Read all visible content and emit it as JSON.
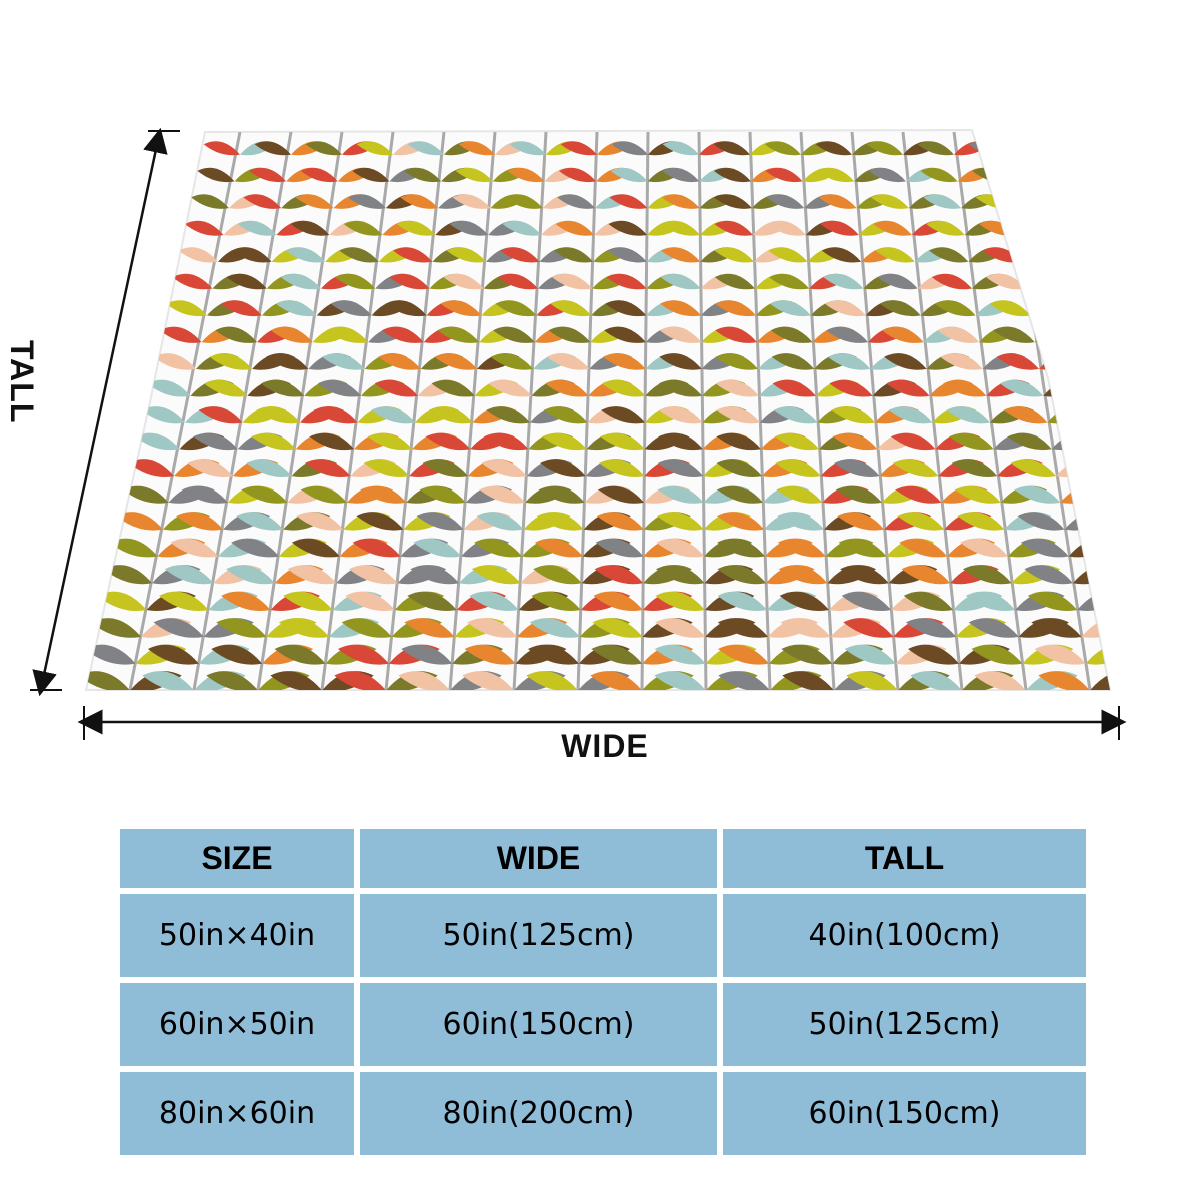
{
  "dimensions": {
    "tall_label": "TALL",
    "wide_label": "WIDE"
  },
  "palette": {
    "stem": "#a9a9a9",
    "leaves": [
      "#c6c41e",
      "#6b4a24",
      "#e8862f",
      "#7b7a2b",
      "#d94836",
      "#9fc7c3",
      "#808285",
      "#f2c2a4",
      "#92961f"
    ],
    "table_fill": "#8fbdd8"
  },
  "size_table": {
    "headers": [
      "SIZE",
      "WIDE",
      "TALL"
    ],
    "rows": [
      [
        "50in×40in",
        "50in(125cm)",
        "40in(100cm)"
      ],
      [
        "60in×50in",
        "60in(150cm)",
        "50in(125cm)"
      ],
      [
        "80in×60in",
        "80in(200cm)",
        "60in(150cm)"
      ]
    ]
  }
}
